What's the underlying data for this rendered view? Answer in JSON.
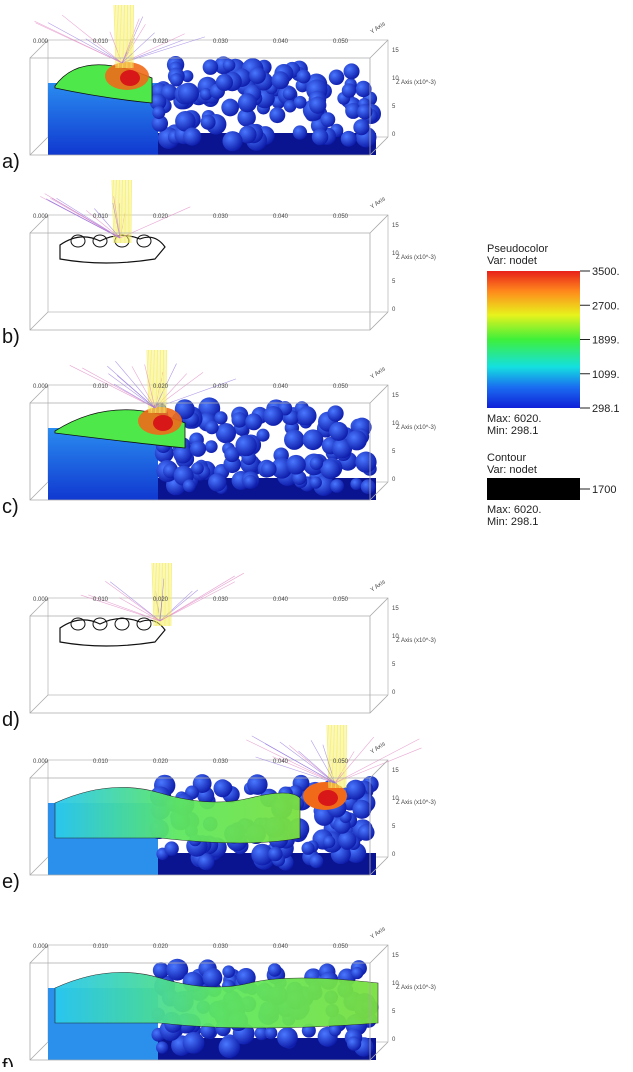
{
  "panels": [
    {
      "label": "a)"
    },
    {
      "label": "b)"
    },
    {
      "label": "c)"
    },
    {
      "label": "d)"
    },
    {
      "label": "e)"
    },
    {
      "label": "f)"
    }
  ],
  "axes": {
    "x_ticks": [
      "0.000",
      "0.010",
      "0.020",
      "0.030",
      "0.040",
      "0.050"
    ],
    "z_ticks": [
      "15",
      "10",
      "5",
      "0"
    ],
    "z_title": "Z Axis (x10^-3)",
    "y_title": "Y Axis"
  },
  "legend": {
    "pseudocolor": {
      "title": "Pseudocolor",
      "var": "Var: nodet",
      "ticks": [
        "3500.",
        "2700.",
        "1899.",
        "1099.",
        "298.1"
      ],
      "max": "Max: 6020.",
      "min": "Min: 298.1"
    },
    "contour": {
      "title": "Contour",
      "var": "Var: nodet",
      "tick": "1700",
      "max": "Max: 6020.",
      "min": "Min: 298.1"
    }
  }
}
